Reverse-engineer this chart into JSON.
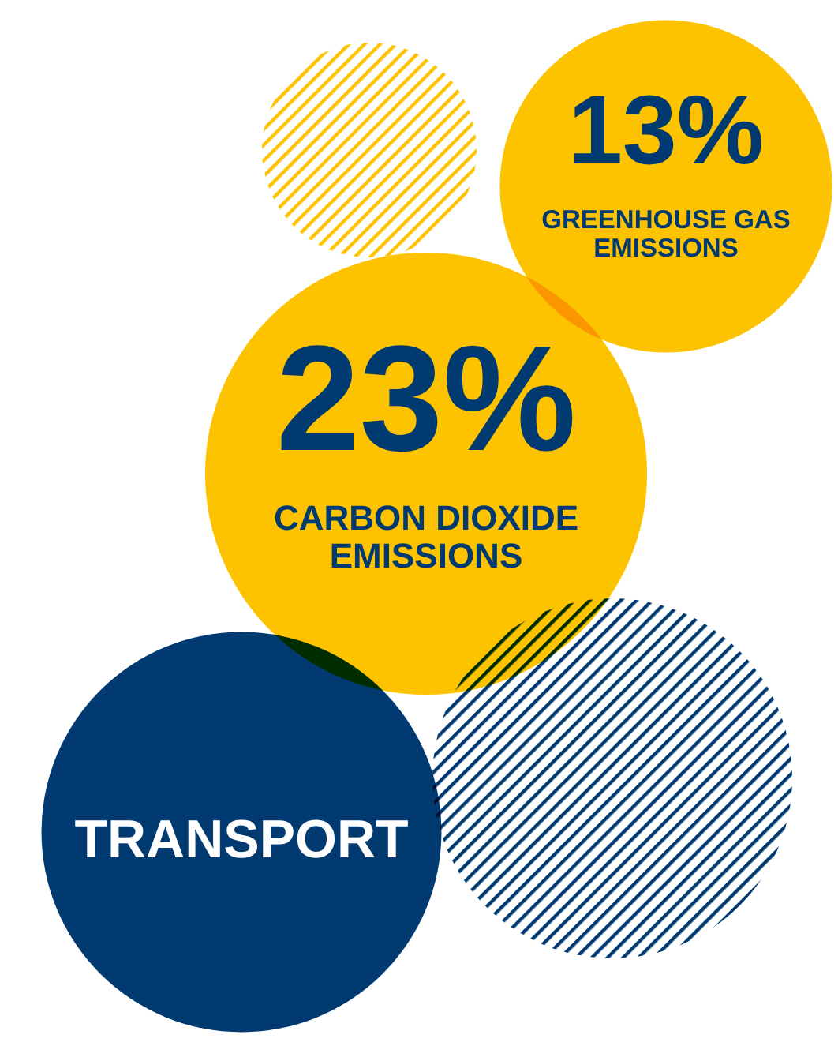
{
  "chart_data": {
    "type": "other",
    "title": "TRANSPORT",
    "categories": [
      "GREENHOUSE GAS EMISSIONS",
      "CARBON DIOXIDE EMISSIONS"
    ],
    "values": [
      13,
      23
    ],
    "value_labels": [
      "13%",
      "23%"
    ],
    "colors": [
      "#fdc300",
      "#fdc300"
    ]
  }
}
